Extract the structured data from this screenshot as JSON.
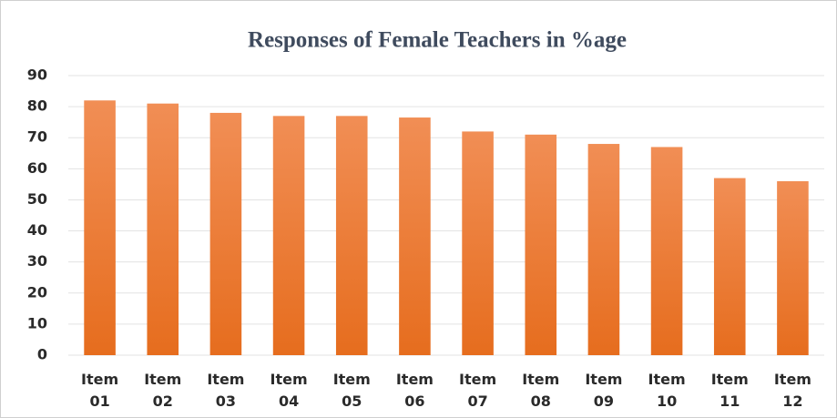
{
  "chart_data": {
    "type": "bar",
    "title": "Responses of Female Teachers in %age",
    "categories": [
      "Item 01",
      "Item 02",
      "Item 03",
      "Item 04",
      "Item 05",
      "Item 06",
      "Item 07",
      "Item 08",
      "Item 09",
      "Item 10",
      "Item 11",
      "Item 12"
    ],
    "values": [
      82,
      81,
      78,
      77,
      77,
      76.5,
      72,
      71,
      68,
      67,
      57,
      56
    ],
    "color": "#ed7d31",
    "ylim": [
      0,
      90
    ],
    "yticks": [
      0,
      10,
      20,
      30,
      40,
      50,
      60,
      70,
      80,
      90
    ],
    "grid": true
  }
}
